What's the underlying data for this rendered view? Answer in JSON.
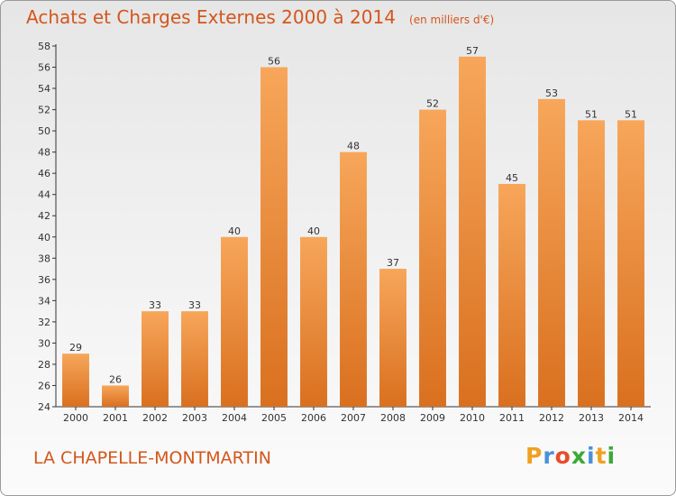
{
  "chart_data": {
    "type": "bar",
    "title": "Achats et Charges Externes 2000 à 2014",
    "unit_label": "(en milliers d'€)",
    "categories": [
      "2000",
      "2001",
      "2002",
      "2003",
      "2004",
      "2005",
      "2006",
      "2007",
      "2008",
      "2009",
      "2010",
      "2011",
      "2012",
      "2013",
      "2014"
    ],
    "values": [
      29,
      26,
      33,
      33,
      40,
      56,
      40,
      48,
      37,
      52,
      57,
      45,
      53,
      51,
      51
    ],
    "ylim": [
      24,
      58
    ],
    "yticks": [
      24,
      26,
      28,
      30,
      32,
      34,
      36,
      38,
      40,
      42,
      44,
      46,
      48,
      50,
      52,
      54,
      56,
      58
    ],
    "grid": false,
    "bar_color_light": "#f7a65a",
    "bar_color_dark": "#d9701f",
    "text_color": "#d4561b"
  },
  "place_name": "LA CHAPELLE-MONTMARTIN",
  "brand": {
    "text": "Proxiti",
    "letters": [
      "P",
      "r",
      "o",
      "x",
      "i",
      "t",
      "i"
    ],
    "colors": [
      "#f0a020",
      "#4a90d9",
      "#e84c2a",
      "#3aaa35",
      "#4a90d9",
      "#f0a020",
      "#3aaa35"
    ]
  }
}
